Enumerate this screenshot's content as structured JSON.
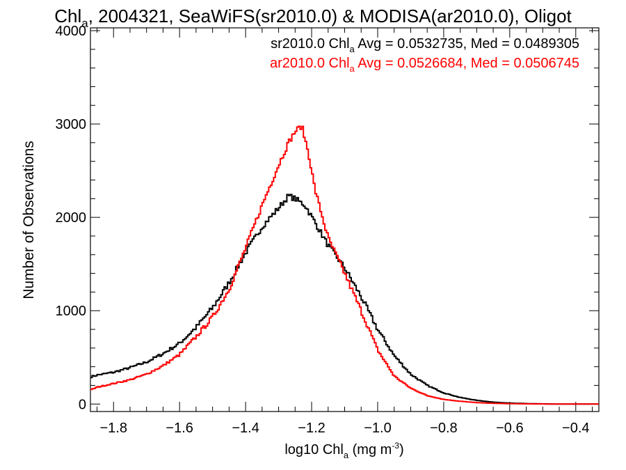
{
  "chart_data": {
    "type": "line",
    "title": {
      "pre": "Chl",
      "sub": "a",
      "post": ", 2004321, SeaWiFS(sr2010.0) & MODISA(ar2010.0), Oligot"
    },
    "xlabel": {
      "pre": "log10 Chl",
      "sub": "a",
      "mid": " (mg m",
      "sup": "-3",
      "post": ")"
    },
    "ylabel": "Number of Observations",
    "xlim": [
      -1.87,
      -0.33
    ],
    "ylim": [
      -80,
      4030
    ],
    "xticks": [
      -1.8,
      -1.6,
      -1.4,
      -1.2,
      -1.0,
      -0.8,
      -0.6,
      -0.4
    ],
    "xtick_labels": [
      "−1.8",
      "−1.6",
      "−1.4",
      "−1.2",
      "−1.0",
      "−0.8",
      "−0.6",
      "−0.4"
    ],
    "yticks": [
      0,
      1000,
      2000,
      3000,
      4000
    ],
    "ytick_labels": [
      "0",
      "1000",
      "2000",
      "3000",
      "4000"
    ],
    "legend_placement": "top-right",
    "series": [
      {
        "legend": {
          "pre": "sr2010.0 Chl",
          "sub": "a",
          "post": " Avg = 0.0532735, Med = 0.0489305"
        },
        "color": "#000000",
        "points": [
          [
            -1.87,
            290
          ],
          [
            -1.85,
            310
          ],
          [
            -1.8,
            340
          ],
          [
            -1.75,
            390
          ],
          [
            -1.7,
            450
          ],
          [
            -1.65,
            540
          ],
          [
            -1.6,
            650
          ],
          [
            -1.55,
            820
          ],
          [
            -1.5,
            1030
          ],
          [
            -1.45,
            1300
          ],
          [
            -1.4,
            1620
          ],
          [
            -1.35,
            1900
          ],
          [
            -1.3,
            2100
          ],
          [
            -1.27,
            2230
          ],
          [
            -1.25,
            2200
          ],
          [
            -1.22,
            2130
          ],
          [
            -1.2,
            2010
          ],
          [
            -1.15,
            1700
          ],
          [
            -1.1,
            1460
          ],
          [
            -1.05,
            1150
          ],
          [
            -1.0,
            800
          ],
          [
            -0.95,
            520
          ],
          [
            -0.9,
            320
          ],
          [
            -0.85,
            200
          ],
          [
            -0.8,
            120
          ],
          [
            -0.75,
            70
          ],
          [
            -0.7,
            40
          ],
          [
            -0.65,
            20
          ],
          [
            -0.6,
            10
          ],
          [
            -0.55,
            5
          ],
          [
            -0.5,
            2
          ],
          [
            -0.45,
            0
          ],
          [
            -0.4,
            0
          ],
          [
            -0.33,
            0
          ]
        ]
      },
      {
        "legend": {
          "pre": "ar2010.0 Chl",
          "sub": "a",
          "post": " Avg = 0.0526684, Med = 0.0506745"
        },
        "color": "#ff0000",
        "points": [
          [
            -1.87,
            150
          ],
          [
            -1.85,
            180
          ],
          [
            -1.8,
            220
          ],
          [
            -1.75,
            260
          ],
          [
            -1.7,
            320
          ],
          [
            -1.65,
            410
          ],
          [
            -1.6,
            530
          ],
          [
            -1.55,
            720
          ],
          [
            -1.5,
            930
          ],
          [
            -1.45,
            1230
          ],
          [
            -1.4,
            1670
          ],
          [
            -1.35,
            2130
          ],
          [
            -1.3,
            2560
          ],
          [
            -1.27,
            2800
          ],
          [
            -1.25,
            2920
          ],
          [
            -1.23,
            2980
          ],
          [
            -1.21,
            2700
          ],
          [
            -1.19,
            2300
          ],
          [
            -1.15,
            1780
          ],
          [
            -1.1,
            1400
          ],
          [
            -1.05,
            1000
          ],
          [
            -1.0,
            580
          ],
          [
            -0.95,
            300
          ],
          [
            -0.9,
            170
          ],
          [
            -0.85,
            90
          ],
          [
            -0.8,
            50
          ],
          [
            -0.75,
            30
          ],
          [
            -0.7,
            15
          ],
          [
            -0.65,
            8
          ],
          [
            -0.6,
            4
          ],
          [
            -0.55,
            2
          ],
          [
            -0.5,
            1
          ],
          [
            -0.45,
            0
          ],
          [
            -0.4,
            0
          ],
          [
            -0.33,
            0
          ]
        ]
      }
    ]
  }
}
